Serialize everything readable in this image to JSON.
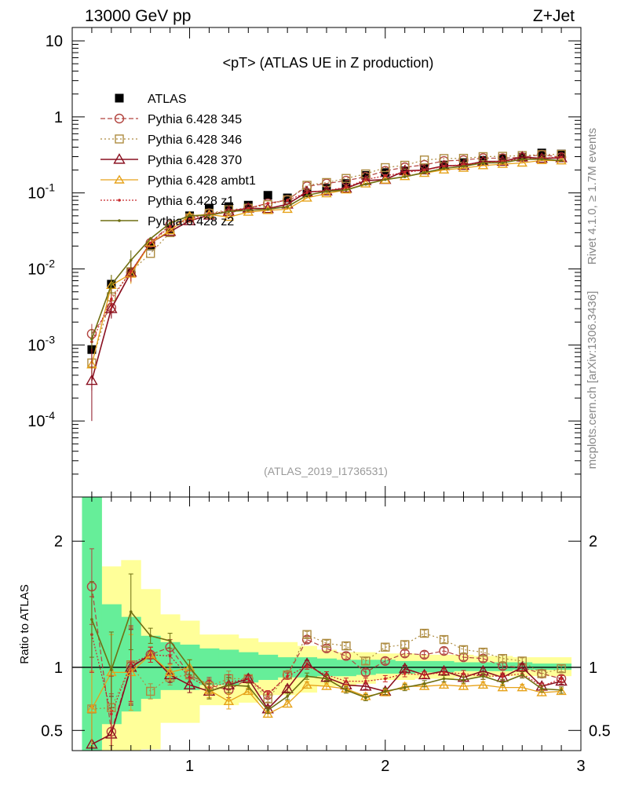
{
  "header": {
    "left_title": "13000 GeV pp",
    "right_title": "Z+Jet"
  },
  "side_labels": {
    "rivet": "Rivet 4.1.0, ≥ 1.7M events",
    "mcplots": "mcplots.cern.ch [arXiv:1306.3436]"
  },
  "chart_data": [
    {
      "type": "line",
      "title": "<pT> (ATLAS UE in Z production)",
      "analysis_label": "(ATLAS_2019_I1736531)",
      "y_scale": "log",
      "xlim": [
        0.4,
        3.0
      ],
      "ylim": [
        1e-05,
        15
      ],
      "y_ticks": [
        {
          "value": 10,
          "label": "10"
        },
        {
          "value": 1,
          "label": "1"
        },
        {
          "value": 0.1,
          "label": "10^-1"
        },
        {
          "value": 0.01,
          "label": "10^-2"
        },
        {
          "value": 0.001,
          "label": "10^-3"
        },
        {
          "value": 0.0001,
          "label": "10^-4"
        }
      ],
      "legend_position": "top-left",
      "x": [
        0.5,
        0.6,
        0.7,
        0.8,
        0.9,
        1.0,
        1.1,
        1.2,
        1.3,
        1.4,
        1.5,
        1.6,
        1.7,
        1.8,
        1.9,
        2.0,
        2.1,
        2.2,
        2.3,
        2.4,
        2.5,
        2.6,
        2.7,
        2.8,
        2.9
      ],
      "series": [
        {
          "name": "ATLAS",
          "color": "#000000",
          "style": "data",
          "values": [
            0.00087,
            0.0063,
            0.009,
            0.02,
            0.033,
            0.05,
            0.063,
            0.066,
            0.069,
            0.093,
            0.086,
            0.1,
            0.115,
            0.133,
            0.17,
            0.185,
            0.195,
            0.213,
            0.232,
            0.25,
            0.268,
            0.283,
            0.295,
            0.335,
            0.325
          ]
        },
        {
          "name": "Pythia 6.428 345",
          "color": "#b2443f",
          "style": "mc",
          "values": [
            0.0014,
            0.0031,
            0.009,
            0.022,
            0.038,
            0.047,
            0.054,
            0.054,
            0.063,
            0.073,
            0.081,
            0.122,
            0.133,
            0.145,
            0.163,
            0.195,
            0.217,
            0.234,
            0.263,
            0.27,
            0.287,
            0.286,
            0.294,
            0.318,
            0.295
          ]
        },
        {
          "name": "Pythia 6.428 346",
          "color": "#ad8b40",
          "style": "mc",
          "values": [
            0.00058,
            0.0043,
            0.0092,
            0.016,
            0.03,
            0.047,
            0.054,
            0.06,
            0.063,
            0.07,
            0.081,
            0.126,
            0.137,
            0.155,
            0.178,
            0.215,
            0.231,
            0.271,
            0.283,
            0.285,
            0.3,
            0.303,
            0.31,
            0.319,
            0.322
          ]
        },
        {
          "name": "Pythia 6.428 370",
          "color": "#8a1020",
          "style": "mc",
          "values": [
            0.00034,
            0.003,
            0.009,
            0.022,
            0.031,
            0.043,
            0.051,
            0.057,
            0.063,
            0.062,
            0.071,
            0.103,
            0.106,
            0.115,
            0.145,
            0.15,
            0.195,
            0.2,
            0.227,
            0.23,
            0.259,
            0.26,
            0.296,
            0.285,
            0.289
          ]
        },
        {
          "name": "Pythia 6.428 ambt1",
          "color": "#e6a21a",
          "style": "mc",
          "values": [
            0.00055,
            0.0061,
            0.0086,
            0.022,
            0.032,
            0.05,
            0.052,
            0.048,
            0.056,
            0.059,
            0.061,
            0.086,
            0.098,
            0.11,
            0.132,
            0.148,
            0.165,
            0.182,
            0.201,
            0.212,
            0.229,
            0.239,
            0.248,
            0.268,
            0.265
          ]
        },
        {
          "name": "Pythia 6.428 z1",
          "color": "#c8282a",
          "style": "mc",
          "values": [
            0.0011,
            0.004,
            0.0093,
            0.022,
            0.036,
            0.046,
            0.053,
            0.058,
            0.063,
            0.073,
            0.08,
            0.101,
            0.108,
            0.118,
            0.15,
            0.168,
            0.186,
            0.2,
            0.222,
            0.238,
            0.25,
            0.262,
            0.279,
            0.286,
            0.297
          ]
        },
        {
          "name": "Pythia 6.428 z2",
          "color": "#6f6f12",
          "style": "mc",
          "values": [
            0.0012,
            0.0062,
            0.013,
            0.025,
            0.04,
            0.05,
            0.051,
            0.057,
            0.059,
            0.061,
            0.066,
            0.093,
            0.105,
            0.109,
            0.13,
            0.15,
            0.163,
            0.185,
            0.21,
            0.224,
            0.248,
            0.249,
            0.277,
            0.278,
            0.266
          ]
        }
      ]
    },
    {
      "type": "line",
      "ylabel": "Ratio to ATLAS",
      "xlim": [
        0.4,
        3.0
      ],
      "ylim": [
        0.34,
        2.35
      ],
      "x_ticks": [
        {
          "value": 1,
          "label": "1"
        },
        {
          "value": 2,
          "label": "2"
        },
        {
          "value": 3,
          "label": "3"
        }
      ],
      "y_ticks": [
        {
          "value": 0.5,
          "label": "0.5"
        },
        {
          "value": 1,
          "label": "1"
        },
        {
          "value": 2,
          "label": "2"
        }
      ],
      "x": [
        0.5,
        0.6,
        0.7,
        0.8,
        0.9,
        1.0,
        1.1,
        1.2,
        1.3,
        1.4,
        1.5,
        1.6,
        1.7,
        1.8,
        1.9,
        2.0,
        2.1,
        2.2,
        2.3,
        2.4,
        2.5,
        2.6,
        2.7,
        2.8,
        2.9
      ],
      "bands": {
        "yellow": {
          "color": "#ffff99",
          "lo": [
            0.25,
            0.25,
            0.3,
            0.35,
            0.56,
            0.56,
            0.7,
            0.7,
            0.72,
            0.78,
            0.78,
            0.8,
            0.85,
            0.85,
            0.87,
            0.9,
            0.9,
            0.91,
            0.91,
            0.92,
            0.92,
            0.93,
            0.93,
            0.93,
            0.93
          ],
          "hi": [
            2.4,
            1.8,
            1.85,
            1.62,
            1.42,
            1.37,
            1.26,
            1.26,
            1.23,
            1.2,
            1.2,
            1.17,
            1.14,
            1.12,
            1.12,
            1.11,
            1.11,
            1.1,
            1.1,
            1.1,
            1.09,
            1.09,
            1.08,
            1.08,
            1.08
          ]
        },
        "green": {
          "color": "#66ee99",
          "lo": [
            0.25,
            0.55,
            0.65,
            0.75,
            0.82,
            0.82,
            0.86,
            0.86,
            0.88,
            0.9,
            0.92,
            0.92,
            0.93,
            0.93,
            0.94,
            0.95,
            0.95,
            0.96,
            0.96,
            0.97,
            0.97,
            0.97,
            0.98,
            0.98,
            0.98
          ],
          "hi": [
            2.4,
            1.5,
            1.4,
            1.25,
            1.2,
            1.18,
            1.15,
            1.14,
            1.12,
            1.1,
            1.08,
            1.08,
            1.07,
            1.06,
            1.06,
            1.06,
            1.05,
            1.05,
            1.05,
            1.04,
            1.04,
            1.04,
            1.04,
            1.03,
            1.03
          ]
        }
      },
      "series": [
        {
          "name": "Pythia 6.428 345",
          "values": [
            1.64,
            0.49,
            1.01,
            1.1,
            1.16,
            0.94,
            0.86,
            0.82,
            0.91,
            0.78,
            0.94,
            1.22,
            1.15,
            1.09,
            0.96,
            1.05,
            1.11,
            1.1,
            1.13,
            1.08,
            1.07,
            1.01,
            1.0,
            0.95,
            0.91
          ]
        },
        {
          "name": "Pythia 6.428 346",
          "values": [
            0.67,
            0.68,
            1.02,
            0.81,
            0.92,
            0.94,
            0.85,
            0.91,
            0.91,
            0.75,
            0.94,
            1.26,
            1.19,
            1.17,
            1.05,
            1.16,
            1.18,
            1.27,
            1.22,
            1.14,
            1.12,
            1.07,
            1.05,
            0.95,
            0.99
          ]
        },
        {
          "name": "Pythia 6.428 370",
          "values": [
            0.39,
            0.47,
            1.0,
            1.1,
            0.94,
            0.86,
            0.81,
            0.86,
            0.91,
            0.67,
            0.83,
            1.03,
            0.92,
            0.86,
            0.85,
            0.81,
            0.99,
            0.94,
            0.97,
            0.92,
            0.97,
            0.92,
            1.0,
            0.85,
            0.89
          ]
        },
        {
          "name": "Pythia 6.428 ambt1",
          "values": [
            0.67,
            0.96,
            0.96,
            1.1,
            0.96,
            1.0,
            0.82,
            0.73,
            0.81,
            0.63,
            0.71,
            0.86,
            0.85,
            0.83,
            0.77,
            0.8,
            0.85,
            0.85,
            0.86,
            0.85,
            0.86,
            0.84,
            0.84,
            0.8,
            0.81
          ]
        },
        {
          "name": "Pythia 6.428 z1",
          "values": [
            1.26,
            0.63,
            1.03,
            1.1,
            1.09,
            0.92,
            0.84,
            0.88,
            0.91,
            0.79,
            0.93,
            1.01,
            0.94,
            0.89,
            0.89,
            0.91,
            0.95,
            0.94,
            0.96,
            0.95,
            0.93,
            0.93,
            0.95,
            0.85,
            0.91
          ]
        },
        {
          "name": "Pythia 6.428 z2",
          "values": [
            1.38,
            0.98,
            1.44,
            1.25,
            1.21,
            1.0,
            0.81,
            0.86,
            0.85,
            0.66,
            0.77,
            0.93,
            0.91,
            0.82,
            0.76,
            0.81,
            0.84,
            0.87,
            0.91,
            0.9,
            0.93,
            0.88,
            0.94,
            0.83,
            0.82
          ]
        }
      ]
    }
  ]
}
